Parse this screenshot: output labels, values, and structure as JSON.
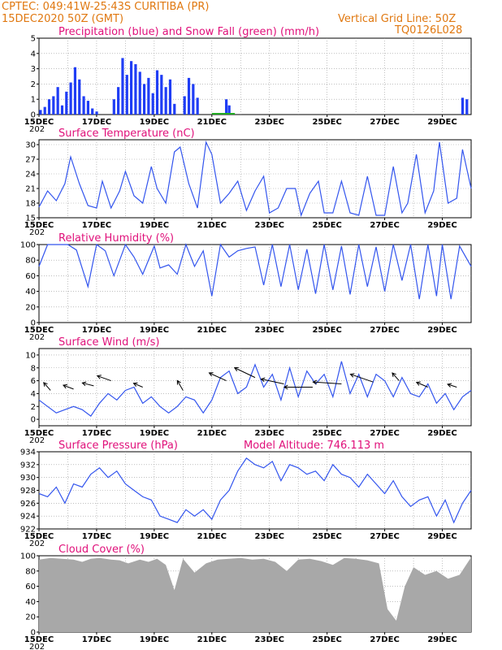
{
  "header": {
    "line1_left": "CPTEC:   049:41W-25:43S   CURITIBA (PR)",
    "line2_left": "15DEC2020  50Z (GMT)",
    "line2_right": "Vertical Grid Line: 50Z",
    "line3_right": "TQ0126L028"
  },
  "x_axis": {
    "labels": [
      "15DEC",
      "17DEC",
      "19DEC",
      "21DEC",
      "23DEC",
      "25DEC",
      "27DEC",
      "29DEC"
    ],
    "year_fragment": "202"
  },
  "colors": {
    "header": "#e07810",
    "titles": "#e0107a",
    "precip": "#1f3df5",
    "snow": "#22aa22",
    "series": "#3355ee",
    "cloud": "#a8a8a8",
    "grid": "#999999"
  },
  "chart_data": [
    {
      "id": "precip",
      "type": "bar",
      "title": "Precipitation (blue) and Snow Fall (green) (mm/h)",
      "ylim": [
        0,
        5
      ],
      "yticks": [
        0,
        1,
        2,
        3,
        4,
        5
      ],
      "x_range_days": [
        15,
        30
      ],
      "series": [
        {
          "name": "Precipitation",
          "x": [
            15.05,
            15.2,
            15.35,
            15.5,
            15.65,
            15.8,
            15.95,
            16.1,
            16.25,
            16.4,
            16.55,
            16.7,
            16.85,
            17.0,
            17.6,
            17.75,
            17.9,
            18.05,
            18.2,
            18.35,
            18.5,
            18.65,
            18.8,
            18.95,
            19.1,
            19.25,
            19.4,
            19.55,
            19.7,
            20.05,
            20.2,
            20.35,
            20.5,
            21.5,
            21.6,
            29.7,
            29.85
          ],
          "values": [
            0.3,
            0.5,
            1.0,
            1.2,
            1.8,
            0.6,
            1.5,
            2.1,
            3.1,
            2.3,
            1.2,
            0.9,
            0.4,
            0.2,
            1.0,
            1.8,
            3.7,
            2.6,
            3.5,
            3.3,
            2.8,
            2.0,
            2.4,
            1.4,
            2.9,
            2.6,
            1.8,
            2.3,
            0.7,
            1.2,
            2.4,
            2.0,
            1.1,
            1.0,
            0.6,
            1.1,
            1.0
          ]
        },
        {
          "name": "Snow Fall",
          "values": []
        }
      ]
    },
    {
      "id": "temperature",
      "type": "line",
      "title": "Surface Temperature (nC)",
      "ylim": [
        15,
        31
      ],
      "yticks": [
        15,
        18,
        21,
        24,
        27,
        30
      ],
      "x": [
        15.0,
        15.3,
        15.6,
        15.9,
        16.1,
        16.4,
        16.7,
        17.0,
        17.2,
        17.5,
        17.8,
        18.0,
        18.3,
        18.6,
        18.9,
        19.1,
        19.4,
        19.7,
        19.9,
        20.2,
        20.5,
        20.8,
        21.0,
        21.3,
        21.6,
        21.9,
        22.2,
        22.5,
        22.8,
        23.0,
        23.3,
        23.6,
        23.9,
        24.1,
        24.4,
        24.7,
        24.9,
        25.2,
        25.5,
        25.8,
        26.1,
        26.4,
        26.7,
        27.0,
        27.3,
        27.6,
        27.8,
        28.1,
        28.4,
        28.7,
        28.9,
        29.2,
        29.5,
        29.7,
        30.0
      ],
      "values": [
        17.2,
        20.5,
        18.5,
        22,
        27.5,
        22,
        17.5,
        17,
        22.5,
        17,
        20.5,
        24.5,
        19.5,
        18,
        25.5,
        21,
        18,
        28.5,
        29.5,
        22,
        17,
        30.5,
        28,
        18,
        20,
        22.5,
        16.5,
        20.5,
        23.5,
        16,
        17,
        21,
        21,
        15.5,
        20,
        22.5,
        16,
        16,
        22.5,
        16,
        15.5,
        23.5,
        15.5,
        15.5,
        25.5,
        16,
        18,
        28,
        16,
        20.5,
        30.5,
        18,
        19,
        29,
        21
      ]
    },
    {
      "id": "humidity",
      "type": "line",
      "title": "Relative Humidity (%)",
      "ylim": [
        0,
        100
      ],
      "yticks": [
        0,
        20,
        40,
        60,
        80,
        100
      ],
      "x": [
        15.0,
        15.3,
        15.6,
        16.0,
        16.3,
        16.7,
        17.0,
        17.3,
        17.6,
        18.0,
        18.3,
        18.6,
        19.0,
        19.2,
        19.5,
        19.8,
        20.1,
        20.4,
        20.7,
        21.0,
        21.3,
        21.6,
        21.9,
        22.2,
        22.5,
        22.8,
        23.1,
        23.4,
        23.7,
        24.0,
        24.3,
        24.6,
        24.9,
        25.2,
        25.5,
        25.8,
        26.1,
        26.4,
        26.7,
        27.0,
        27.3,
        27.6,
        27.9,
        28.2,
        28.5,
        28.8,
        29.0,
        29.3,
        29.6,
        30.0
      ],
      "values": [
        72,
        100,
        100,
        100,
        93,
        46,
        100,
        92,
        60,
        100,
        84,
        62,
        98,
        70,
        74,
        62,
        100,
        72,
        92,
        34,
        100,
        84,
        92,
        95,
        97,
        48,
        100,
        46,
        100,
        42,
        94,
        37,
        100,
        42,
        98,
        36,
        100,
        46,
        97,
        40,
        100,
        54,
        100,
        30,
        100,
        34,
        100,
        30,
        98,
        72
      ]
    },
    {
      "id": "wind",
      "type": "line",
      "title": "Surface Wind (m/s)",
      "ylim": [
        -1,
        11
      ],
      "yticks": [
        0,
        2,
        4,
        6,
        8,
        10
      ],
      "x": [
        15.0,
        15.3,
        15.6,
        15.9,
        16.2,
        16.5,
        16.8,
        17.1,
        17.4,
        17.7,
        18.0,
        18.3,
        18.6,
        18.9,
        19.2,
        19.5,
        19.8,
        20.1,
        20.4,
        20.7,
        21.0,
        21.3,
        21.6,
        21.9,
        22.2,
        22.5,
        22.8,
        23.1,
        23.4,
        23.7,
        24.0,
        24.3,
        24.6,
        24.9,
        25.2,
        25.5,
        25.8,
        26.1,
        26.4,
        26.7,
        27.0,
        27.3,
        27.6,
        27.9,
        28.2,
        28.5,
        28.8,
        29.1,
        29.4,
        29.7,
        30.0
      ],
      "values": [
        3,
        2,
        1,
        1.5,
        2,
        1.5,
        0.5,
        2.5,
        4,
        3,
        4.5,
        5,
        2.5,
        3.5,
        2,
        1,
        2,
        3.5,
        3,
        1,
        3,
        6.5,
        7.5,
        4,
        5,
        8.5,
        5,
        7,
        3,
        8,
        3.5,
        7.5,
        5.5,
        7,
        3.5,
        9,
        4,
        7,
        3.5,
        7,
        6,
        3.5,
        6.5,
        4,
        3.5,
        5.5,
        2.5,
        4,
        1.5,
        3.5,
        4.5
      ]
    },
    {
      "id": "pressure",
      "type": "line",
      "title": "Surface Pressure (hPa)",
      "annotation": "Model Altitude: 746.113  m",
      "ylim": [
        922,
        934
      ],
      "yticks": [
        922,
        924,
        926,
        928,
        930,
        932,
        934
      ],
      "x": [
        15.0,
        15.3,
        15.6,
        15.9,
        16.2,
        16.5,
        16.8,
        17.1,
        17.4,
        17.7,
        18.0,
        18.3,
        18.6,
        18.9,
        19.2,
        19.5,
        19.8,
        20.1,
        20.4,
        20.7,
        21.0,
        21.3,
        21.6,
        21.9,
        22.2,
        22.5,
        22.8,
        23.1,
        23.4,
        23.7,
        24.0,
        24.3,
        24.6,
        24.9,
        25.2,
        25.5,
        25.8,
        26.1,
        26.4,
        26.7,
        27.0,
        27.3,
        27.6,
        27.9,
        28.2,
        28.5,
        28.8,
        29.1,
        29.4,
        29.7,
        30.0
      ],
      "values": [
        927.5,
        927,
        928.5,
        926,
        929,
        928.5,
        930.5,
        931.5,
        930,
        931,
        929,
        928,
        927,
        926.5,
        924,
        923.5,
        923,
        925,
        924,
        925,
        923.5,
        926.5,
        928,
        931,
        933,
        932,
        931.5,
        932.5,
        929.5,
        932,
        931.5,
        930.5,
        931,
        929.5,
        932,
        930.5,
        930,
        928.5,
        930.5,
        929,
        927.5,
        929.5,
        927,
        925.5,
        926.5,
        927,
        924,
        926.5,
        923,
        926,
        928
      ]
    },
    {
      "id": "cloud",
      "type": "area",
      "title": "Cloud Cover (%)",
      "ylim": [
        0,
        100
      ],
      "yticks": [
        0,
        20,
        40,
        60,
        80,
        100
      ],
      "x": [
        15.0,
        15.4,
        15.8,
        16.2,
        16.5,
        16.8,
        17.1,
        17.5,
        17.8,
        18.1,
        18.5,
        18.8,
        19.1,
        19.4,
        19.7,
        20.0,
        20.4,
        20.8,
        21.2,
        21.6,
        22.0,
        22.4,
        22.8,
        23.2,
        23.6,
        24.0,
        24.4,
        24.8,
        25.2,
        25.6,
        26.0,
        26.4,
        26.8,
        27.1,
        27.4,
        27.7,
        28.0,
        28.4,
        28.8,
        29.2,
        29.6,
        30.0
      ],
      "values": [
        95,
        97,
        96,
        95,
        92,
        96,
        97,
        95,
        94,
        90,
        95,
        92,
        96,
        88,
        55,
        96,
        78,
        90,
        95,
        96,
        97,
        95,
        96,
        92,
        80,
        95,
        96,
        93,
        88,
        97,
        96,
        94,
        90,
        30,
        15,
        60,
        85,
        75,
        80,
        70,
        75,
        98
      ]
    }
  ]
}
